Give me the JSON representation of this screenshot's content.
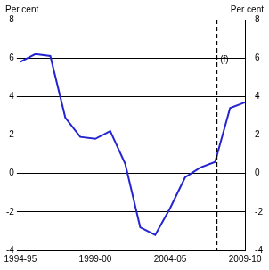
{
  "chart_data": {
    "type": "line",
    "y_label": "Per cent",
    "y2_label": "Per cent",
    "categories": [
      "1994-95",
      null,
      null,
      null,
      null,
      "1999-00",
      null,
      null,
      null,
      null,
      "2004-05",
      null,
      null,
      null,
      null,
      "2009-10"
    ],
    "series": [
      {
        "name": "Per cent",
        "color": "#2424d0",
        "values": [
          5.8,
          6.2,
          6.1,
          2.9,
          1.9,
          1.8,
          2.2,
          0.5,
          -2.8,
          -3.2,
          -1.8,
          -0.2,
          0.3,
          0.6,
          3.4,
          3.7
        ]
      }
    ],
    "ylim": [
      -4,
      8
    ],
    "yticks": [
      -4,
      -2,
      0,
      2,
      4,
      6,
      8
    ],
    "y2lim": [
      -4,
      8
    ],
    "y2ticks": [
      -4,
      -2,
      0,
      2,
      4,
      6,
      8
    ],
    "annotations": [
      {
        "text": "(f)",
        "x": 13.1,
        "line_style": "dashed"
      }
    ],
    "grid": true
  }
}
